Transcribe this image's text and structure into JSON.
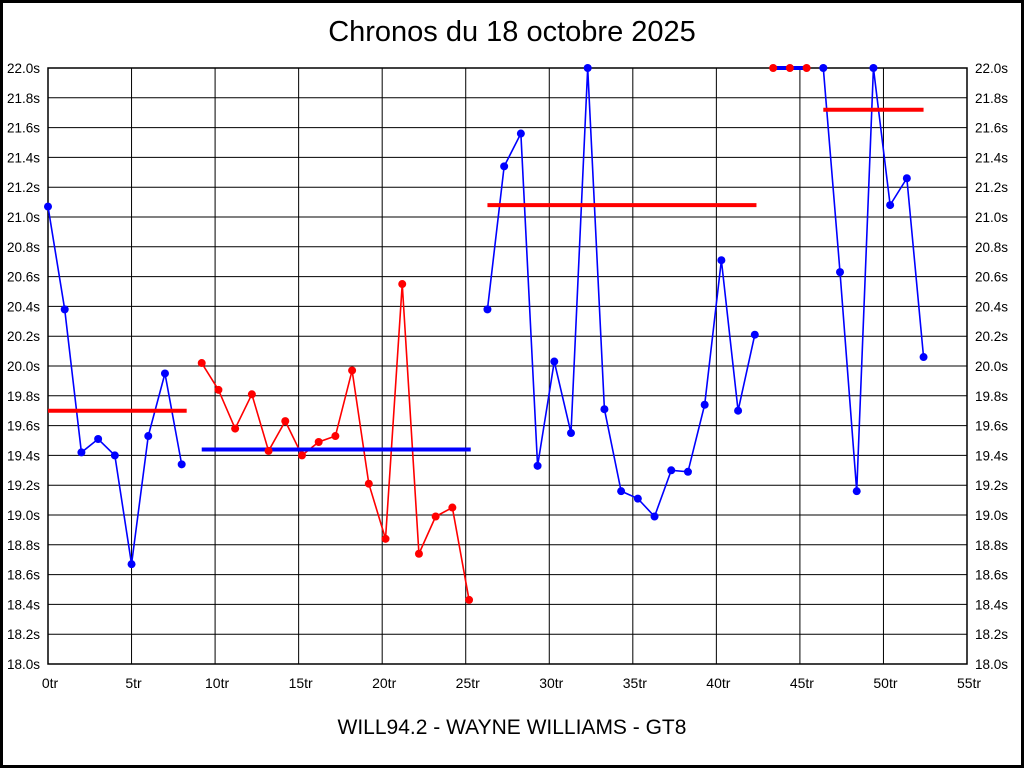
{
  "title": "Chronos du 18 octobre 2025",
  "footer": "WILL94.2 - WAYNE WILLIAMS - GT8",
  "colors": {
    "blue": "#0000ff",
    "red": "#ff0000",
    "axis": "#000000",
    "background": "#ffffff"
  },
  "chart_data": {
    "type": "line",
    "title": "Chronos du 18 octobre 2025",
    "subtitle": "WILL94.2 - WAYNE WILLIAMS - GT8",
    "x_unit": "tr",
    "y_unit": "s",
    "xlim": [
      0,
      55
    ],
    "ylim": [
      18.0,
      22.0
    ],
    "grid": true,
    "legend": "none",
    "x_tick_values": [
      0,
      5,
      10,
      15,
      20,
      25,
      30,
      35,
      40,
      45,
      50,
      55
    ],
    "x_tick_labels": [
      "0tr",
      "5tr",
      "10tr",
      "15tr",
      "20tr",
      "25tr",
      "30tr",
      "35tr",
      "40tr",
      "45tr",
      "50tr",
      "55tr"
    ],
    "y_tick_values": [
      22.0,
      21.8,
      21.6,
      21.4,
      21.2,
      21.0,
      20.8,
      20.6,
      20.4,
      20.2,
      20.0,
      19.8,
      19.6,
      19.4,
      19.2,
      19.0,
      18.8,
      18.6,
      18.4,
      18.2,
      18.0
    ],
    "y_tick_labels": [
      "22.0s",
      "21.8s",
      "21.6s",
      "21.4s",
      "21.2s",
      "21.0s",
      "20.8s",
      "20.6s",
      "20.4s",
      "20.2s",
      "20.0s",
      "19.8s",
      "19.6s",
      "19.4s",
      "19.2s",
      "19.0s",
      "18.8s",
      "18.6s",
      "18.4s",
      "18.2s",
      "18.0s"
    ],
    "series": [
      {
        "name": "stint-1-blue",
        "color": "#0000ff",
        "x_offset": 0,
        "laps": [
          0,
          1,
          2,
          3,
          4,
          5,
          6,
          7,
          8
        ],
        "values": [
          21.07,
          20.38,
          19.42,
          19.51,
          19.4,
          18.67,
          19.53,
          19.95,
          19.34
        ]
      },
      {
        "name": "stint-2-red",
        "color": "#ff0000",
        "x_offset": 0.2,
        "laps": [
          9,
          10,
          11,
          12,
          13,
          14,
          15,
          16,
          17,
          18,
          19,
          20,
          21,
          22,
          23,
          24,
          25
        ],
        "values": [
          20.02,
          19.84,
          19.58,
          19.81,
          19.43,
          19.63,
          19.4,
          19.49,
          19.53,
          19.97,
          19.21,
          18.84,
          20.55,
          18.74,
          18.99,
          19.05,
          18.43
        ]
      },
      {
        "name": "stint-3-blue",
        "color": "#0000ff",
        "x_offset": 0.3,
        "laps": [
          26,
          27,
          28,
          29,
          30,
          31,
          32,
          33,
          34,
          35,
          36,
          37,
          38,
          39,
          40,
          41,
          42
        ],
        "values": [
          20.38,
          21.34,
          21.56,
          19.33,
          20.03,
          19.55,
          22.0,
          19.71,
          19.16,
          19.11,
          18.99,
          19.3,
          19.29,
          19.74,
          20.71,
          19.7,
          20.21
        ]
      },
      {
        "name": "stint-4-red",
        "color": "#ff0000",
        "x_offset": 0.4,
        "laps": [
          43,
          44,
          45
        ],
        "values": [
          22.0,
          22.0,
          22.0
        ]
      },
      {
        "name": "stint-5-blue",
        "color": "#0000ff",
        "x_offset": 0.4,
        "laps": [
          46,
          47,
          48,
          49,
          50,
          51,
          52
        ],
        "values": [
          22.0,
          20.63,
          19.16,
          22.0,
          21.08,
          21.26,
          20.06
        ]
      }
    ],
    "average_lines": [
      {
        "color": "#ff0000",
        "value": 19.7,
        "from": 0.0,
        "to": 8.3
      },
      {
        "color": "#0000ff",
        "value": 19.44,
        "from": 9.2,
        "to": 25.3
      },
      {
        "color": "#ff0000",
        "value": 21.08,
        "from": 26.3,
        "to": 42.4
      },
      {
        "color": "#0000ff",
        "value": 22.0,
        "from": 43.4,
        "to": 45.4
      },
      {
        "color": "#ff0000",
        "value": 21.72,
        "from": 46.4,
        "to": 52.4
      }
    ]
  }
}
